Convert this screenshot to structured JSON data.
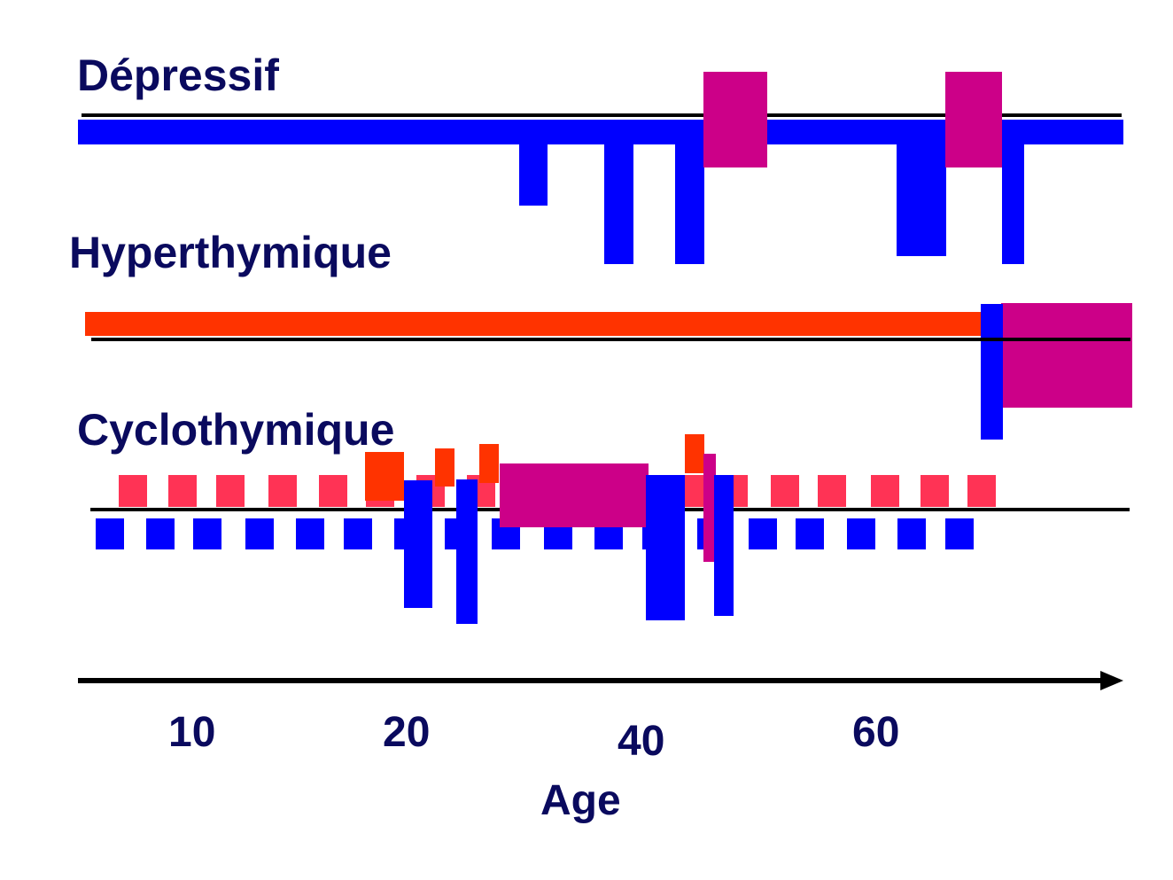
{
  "diagram": {
    "rows": [
      {
        "label": "Dépressif"
      },
      {
        "label": "Hyperthymique"
      },
      {
        "label": "Cyclothymique"
      }
    ],
    "axis": {
      "label": "Age",
      "ticks": [
        "10",
        "20",
        "40",
        "60"
      ]
    },
    "colors": {
      "baseline": "#000000",
      "depressive": "#0000ff",
      "hyperthymic": "#ff3300",
      "mixed": "#cc0088",
      "cyclo_up": "#ff3355",
      "label": "#0a0a5e"
    }
  }
}
